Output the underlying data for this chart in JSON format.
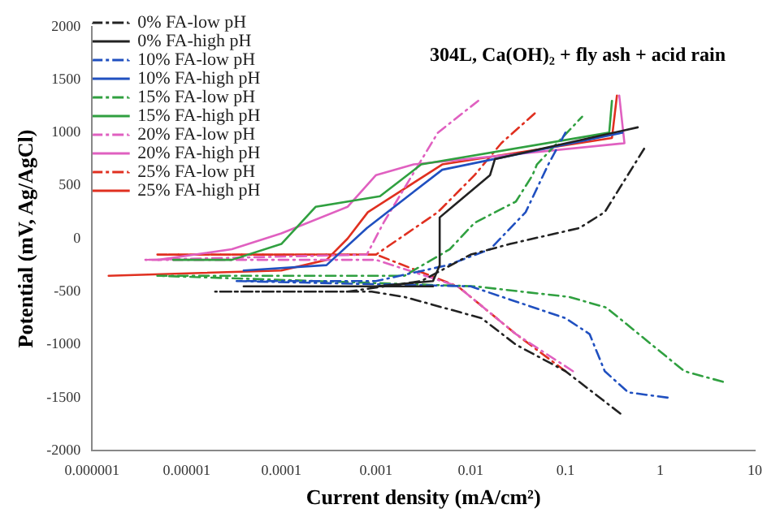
{
  "chart_data": {
    "type": "line",
    "title": "304L, Ca(OH)₂ + fly ash + acid rain",
    "xlabel": "Current density (mA/cm²)",
    "ylabel": "Potential (mV, Ag/AgCl)",
    "log": "x",
    "xlim": [
      1e-06,
      10
    ],
    "xticks": [
      {
        "value": 1e-06,
        "label": "0.000001"
      },
      {
        "value": 1e-05,
        "label": "0.00001"
      },
      0.0001,
      0.001,
      0.01,
      0.1,
      1,
      10
    ],
    "ylim": [
      -2000,
      2000
    ],
    "yticks": [
      -2000,
      -1500,
      -1000,
      -500,
      0,
      500,
      1000,
      1500,
      2000
    ],
    "grid": false,
    "legend": "top left",
    "marker": "none",
    "series": [
      {
        "name": "0% FA-low pH",
        "color": "#222222",
        "line_style": "dashed",
        "x": [
          0.38,
          0.1,
          0.03,
          0.013,
          0.002,
          0.0009,
          0.0002,
          2e-05,
          0.0005,
          0.003,
          0.01,
          0.026,
          0.14,
          0.26,
          0.68
        ],
        "values": [
          -1650,
          -1250,
          -1000,
          -750,
          -550,
          -500,
          -500,
          -500,
          -500,
          -400,
          -150,
          -50,
          100,
          250,
          850
        ]
      },
      {
        "name": "0% FA-high pH",
        "color": "#222222",
        "line_style": "solid",
        "x": [
          0.004,
          4e-05,
          0.001,
          0.004,
          0.0047,
          0.0047,
          0.016,
          0.018,
          0.58
        ],
        "values": [
          -450,
          -450,
          -450,
          -400,
          -250,
          200,
          600,
          750,
          1050
        ]
      },
      {
        "name": "10% FA-low pH",
        "color": "#2050c0",
        "line_style": "dashed",
        "x": [
          1.2,
          0.46,
          0.26,
          0.18,
          0.1,
          0.01,
          3.3e-05,
          0.001,
          0.0057,
          0.016,
          0.038,
          0.066,
          0.1
        ],
        "values": [
          -1500,
          -1450,
          -1250,
          -900,
          -750,
          -450,
          -400,
          -400,
          -250,
          -100,
          250,
          700,
          1000
        ]
      },
      {
        "name": "10% FA-high pH",
        "color": "#2050c0",
        "line_style": "solid",
        "x": [
          4e-05,
          0.0003,
          0.0008,
          0.005,
          0.4
        ],
        "values": [
          -300,
          -250,
          100,
          650,
          1000
        ]
      },
      {
        "name": "15% FA-low pH",
        "color": "#30a040",
        "line_style": "dashed",
        "x": [
          4.6,
          1.8,
          0.27,
          0.11,
          0.011,
          4.9e-06,
          0.002,
          0.006,
          0.011,
          0.03,
          0.045,
          0.05,
          0.15
        ],
        "values": [
          -1350,
          -1250,
          -650,
          -550,
          -450,
          -350,
          -350,
          -100,
          150,
          350,
          600,
          700,
          1150
        ]
      },
      {
        "name": "15% FA-high pH",
        "color": "#30a040",
        "line_style": "solid",
        "x": [
          7.2e-06,
          3e-05,
          0.0001,
          0.00023,
          0.0011,
          0.003,
          0.29,
          0.31
        ],
        "values": [
          -200,
          -200,
          -50,
          300,
          400,
          700,
          1000,
          1300
        ]
      },
      {
        "name": "20% FA-low pH",
        "color": "#e060c0",
        "line_style": "dashed",
        "x": [
          0.12,
          0.03,
          0.0073,
          0.001,
          3.6e-06,
          0.0008,
          0.0012,
          0.0045,
          0.012
        ],
        "values": [
          -1250,
          -900,
          -450,
          -200,
          -200,
          -150,
          150,
          1000,
          1300
        ]
      },
      {
        "name": "20% FA-high pH",
        "color": "#e060c0",
        "line_style": "solid",
        "x": [
          5e-06,
          3e-05,
          0.0001,
          0.0005,
          0.001,
          0.0025,
          0.42,
          0.37
        ],
        "values": [
          -200,
          -100,
          50,
          300,
          600,
          700,
          900,
          1350
        ]
      },
      {
        "name": "25% FA-low pH",
        "color": "#e03020",
        "line_style": "dashed",
        "x": [
          0.1,
          0.03,
          0.0073,
          0.001,
          4.9e-06,
          0.001,
          0.0045,
          0.011,
          0.021,
          0.05
        ],
        "values": [
          -1250,
          -900,
          -450,
          -150,
          -150,
          -150,
          250,
          600,
          900,
          1200
        ]
      },
      {
        "name": "25% FA-high pH",
        "color": "#e03020",
        "line_style": "solid",
        "x": [
          1.5e-06,
          0.0001,
          0.0003,
          0.0005,
          0.00082,
          0.005,
          0.31,
          0.35
        ],
        "values": [
          -350,
          -300,
          -200,
          0,
          250,
          700,
          950,
          1350
        ]
      }
    ]
  }
}
